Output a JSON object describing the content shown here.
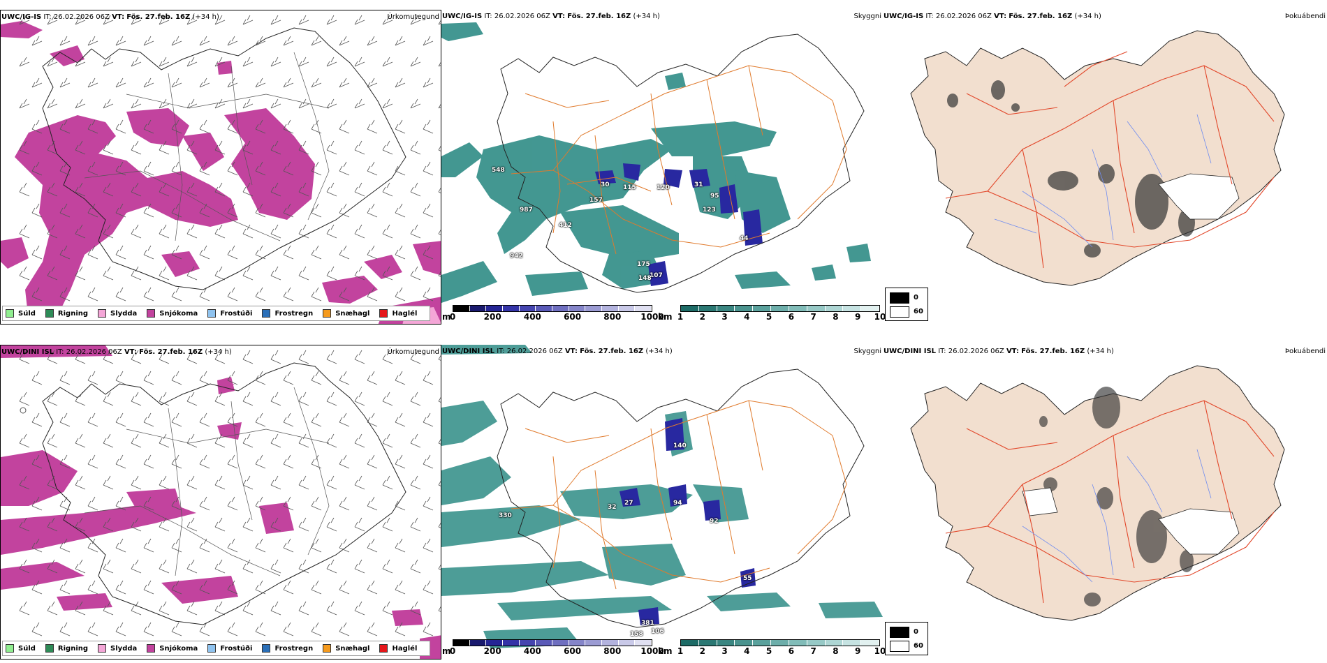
{
  "rows": [
    {
      "model": "UWC/IG-IS",
      "it_label": "IT:",
      "it_value": "26.02.2026 06Z",
      "vt_label": "VT:",
      "vt_value": "Fös. 27.feb. 16Z",
      "lead": "(+34 h)",
      "ceiling_values": [
        "548",
        "30",
        "115",
        "120",
        "31",
        "95",
        "157",
        "123",
        "987",
        "412",
        "44",
        "942",
        "175",
        "107",
        "148"
      ]
    },
    {
      "model": "UWC/DINI ISL",
      "it_label": "IT:",
      "it_value": "26.02.2026 06Z",
      "vt_label": "VT:",
      "vt_value": "Fös. 27.feb. 16Z",
      "lead": "(+34 h)",
      "ceiling_values": [
        "140",
        "330",
        "32",
        "27",
        "94",
        "92",
        "55",
        "381",
        "158",
        "106"
      ]
    }
  ],
  "panel_labels": {
    "precip": "Úrkomutegund",
    "visibility": "Skyggni",
    "fog": "Þokuábendi"
  },
  "precip_legend": [
    {
      "label": "Súld",
      "color": "#90ee90"
    },
    {
      "label": "Rigning",
      "color": "#2e8b57"
    },
    {
      "label": "Slydda",
      "color": "#f4a6d7"
    },
    {
      "label": "Snjókoma",
      "color": "#c2439e"
    },
    {
      "label": "Frostúði",
      "color": "#8fc3ef"
    },
    {
      "label": "Frostregn",
      "color": "#2a6fb8"
    },
    {
      "label": "Snæhagl",
      "color": "#f59a1d"
    },
    {
      "label": "Haglél",
      "color": "#e5161a"
    }
  ],
  "ceiling_bar": {
    "unit": "m",
    "ticks": [
      "0",
      "200",
      "400",
      "600",
      "800",
      "1000"
    ],
    "colors": [
      "#000000",
      "#1a1a6e",
      "#252595",
      "#3434a8",
      "#4545b0",
      "#5a5ab8",
      "#6f6fc0",
      "#8585c9",
      "#9b9bd3",
      "#b3b3de",
      "#c9c9e8",
      "#e0e0f2"
    ]
  },
  "vis_bar": {
    "unit": "km",
    "ticks": [
      "1",
      "2",
      "3",
      "4",
      "5",
      "6",
      "7",
      "8",
      "9",
      "10"
    ],
    "colors": [
      "#1d6b66",
      "#2b7873",
      "#3a8681",
      "#4a938e",
      "#5aa19c",
      "#6daeaa",
      "#81bcb8",
      "#97c9c6",
      "#aed6d4",
      "#c6e3e2",
      "#e2f1f0"
    ]
  },
  "fog_key": {
    "dark": "0",
    "light": "60"
  },
  "colors": {
    "snow": "#c2439e",
    "teal": "#2f8c86",
    "road": "#e07a2c",
    "land": "#f2dfcf",
    "river": "#6f8cf0",
    "redroad": "#e2482b"
  }
}
